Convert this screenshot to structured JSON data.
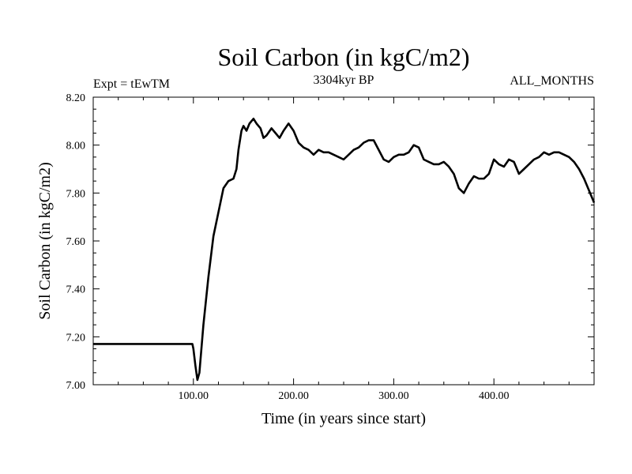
{
  "chart_data": {
    "type": "line",
    "title": "Soil Carbon (in kgC/m2)",
    "subtitle": "3304kyr BP",
    "left_label": "Expt = tEwTM",
    "right_label": "ALL_MONTHS",
    "xlabel": "Time (in years since start)",
    "ylabel": "Soil Carbon (in kgC/m2)",
    "xlim": [
      0,
      500
    ],
    "ylim": [
      7.0,
      8.2
    ],
    "xticks": [
      {
        "value": 100,
        "label": "100.00"
      },
      {
        "value": 200,
        "label": "200.00"
      },
      {
        "value": 300,
        "label": "300.00"
      },
      {
        "value": 400,
        "label": "400.00"
      }
    ],
    "yticks": [
      {
        "value": 7.0,
        "label": "7.00"
      },
      {
        "value": 7.2,
        "label": "7.20"
      },
      {
        "value": 7.4,
        "label": "7.40"
      },
      {
        "value": 7.6,
        "label": "7.60"
      },
      {
        "value": 7.8,
        "label": "7.80"
      },
      {
        "value": 8.0,
        "label": "8.00"
      },
      {
        "value": 8.2,
        "label": "8.20"
      }
    ],
    "series": [
      {
        "name": "soil_carbon",
        "x": [
          0,
          99,
          100,
          102,
          104,
          106,
          110,
          115,
          120,
          125,
          130,
          135,
          140,
          143,
          145,
          148,
          150,
          153,
          156,
          160,
          163,
          167,
          170,
          173,
          178,
          182,
          186,
          190,
          195,
          200,
          205,
          210,
          215,
          220,
          225,
          230,
          235,
          240,
          245,
          250,
          255,
          260,
          265,
          270,
          275,
          280,
          285,
          290,
          295,
          300,
          305,
          310,
          315,
          320,
          325,
          330,
          335,
          340,
          345,
          350,
          355,
          360,
          365,
          370,
          375,
          380,
          385,
          390,
          395,
          400,
          405,
          410,
          415,
          420,
          425,
          430,
          435,
          440,
          445,
          450,
          455,
          460,
          465,
          470,
          475,
          480,
          485,
          490,
          495,
          500
        ],
        "y": [
          7.17,
          7.17,
          7.15,
          7.08,
          7.02,
          7.05,
          7.25,
          7.45,
          7.62,
          7.72,
          7.82,
          7.85,
          7.86,
          7.9,
          7.98,
          8.06,
          8.08,
          8.06,
          8.09,
          8.11,
          8.09,
          8.07,
          8.03,
          8.04,
          8.07,
          8.05,
          8.03,
          8.06,
          8.09,
          8.06,
          8.01,
          7.99,
          7.98,
          7.96,
          7.98,
          7.97,
          7.97,
          7.96,
          7.95,
          7.94,
          7.96,
          7.98,
          7.99,
          8.01,
          8.02,
          8.02,
          7.98,
          7.94,
          7.93,
          7.95,
          7.96,
          7.96,
          7.97,
          8.0,
          7.99,
          7.94,
          7.93,
          7.92,
          7.92,
          7.93,
          7.91,
          7.88,
          7.82,
          7.8,
          7.84,
          7.87,
          7.86,
          7.86,
          7.88,
          7.94,
          7.92,
          7.91,
          7.94,
          7.93,
          7.88,
          7.9,
          7.92,
          7.94,
          7.95,
          7.97,
          7.96,
          7.97,
          7.97,
          7.96,
          7.95,
          7.93,
          7.9,
          7.86,
          7.81,
          7.76
        ]
      }
    ]
  }
}
